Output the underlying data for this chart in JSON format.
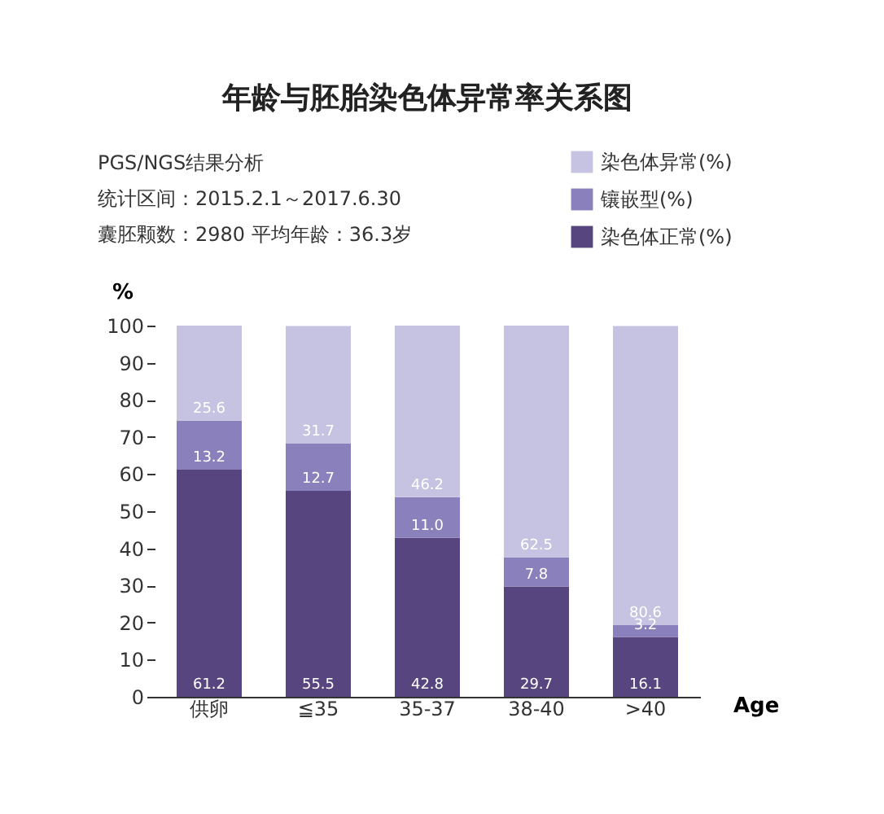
{
  "chart_data": {
    "type": "bar",
    "stacked": true,
    "title": "年龄与胚胎染色体异常率关系图",
    "annotations": [
      "PGS/NGS结果分析",
      "统计区间：2015.2.1～2017.6.30",
      "囊胚颗数：2980     平均年龄：36.3岁"
    ],
    "xlabel": "Age",
    "ylabel": "%",
    "categories": [
      "供卵",
      "≦35",
      "35-37",
      "38-40",
      ">40"
    ],
    "series": [
      {
        "name": "染色体正常(%)",
        "color": "#56457f",
        "values": [
          61.2,
          55.5,
          42.8,
          29.7,
          16.1
        ],
        "value_labels": [
          "61.2",
          "55.5",
          "42.8",
          "29.7",
          "16.1"
        ]
      },
      {
        "name": "镶嵌型(%)",
        "color": "#8a80bb",
        "values": [
          13.2,
          12.7,
          11.0,
          7.8,
          3.2
        ],
        "value_labels": [
          "13.2",
          "12.7",
          "11.0",
          "7.8",
          "3.2"
        ]
      },
      {
        "name": "染色体异常(%)",
        "color": "#c6c3e2",
        "values": [
          25.6,
          31.7,
          46.2,
          62.5,
          80.6
        ],
        "value_labels": [
          "25.6",
          "31.7",
          "46.2",
          "62.5",
          "80.6"
        ]
      }
    ],
    "ylim": [
      0,
      100
    ],
    "yticks": [
      0,
      10,
      20,
      30,
      40,
      50,
      60,
      70,
      80,
      90,
      100
    ],
    "data_labels": true,
    "grid": false,
    "legend": "top right"
  }
}
